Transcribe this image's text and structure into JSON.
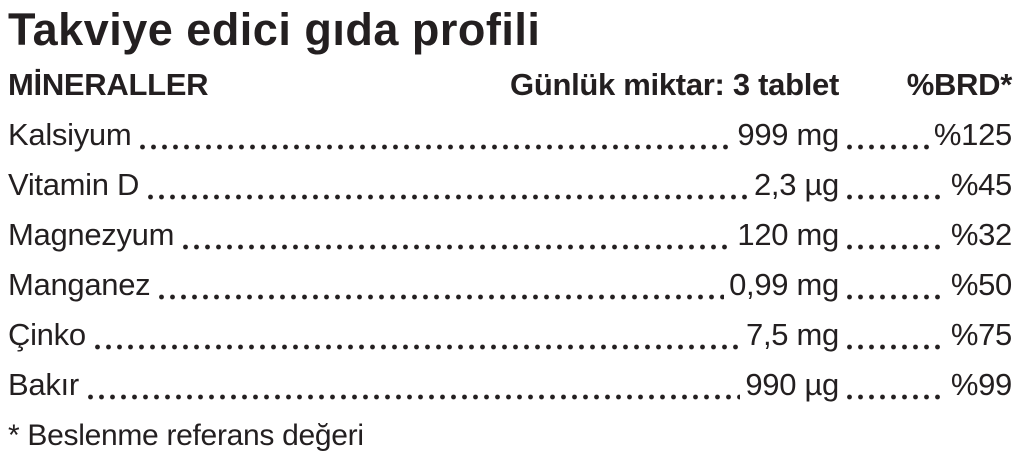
{
  "title": "Takviye edici gıda profili",
  "table": {
    "header": {
      "name_col": "MİNERALLER",
      "amount_col": "Günlük miktar: 3 tablet",
      "percent_col": "%BRD*"
    },
    "rows": [
      {
        "name": "Kalsiyum",
        "amount": "999 mg",
        "percent": "%125"
      },
      {
        "name": "Vitamin D",
        "amount": "2,3 µg",
        "percent": "%45"
      },
      {
        "name": "Magnezyum",
        "amount": "120 mg",
        "percent": "%32"
      },
      {
        "name": "Manganez",
        "amount": "0,99 mg",
        "percent": "%50"
      },
      {
        "name": "Çinko",
        "amount": "7,5 mg",
        "percent": "%75"
      },
      {
        "name": "Bakır",
        "amount": "990 µg",
        "percent": "%99"
      }
    ],
    "footnote": "* Beslenme referans değeri"
  },
  "colors": {
    "text": "#231f20",
    "background": "#ffffff"
  }
}
